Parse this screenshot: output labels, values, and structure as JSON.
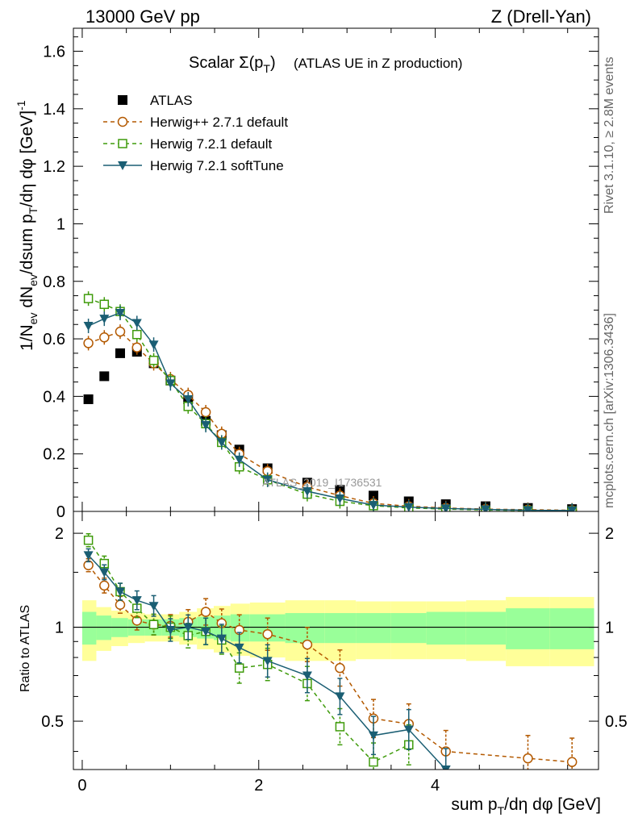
{
  "header": {
    "left": "13000 GeV pp",
    "right": "Z (Drell-Yan)"
  },
  "title": {
    "main": "Scalar Σ(p",
    "sub_T": "T",
    "close": ")",
    "suffix": "(ATLAS UE in Z production)"
  },
  "side_labels": {
    "rivet": "Rivet 3.1.10, ≥ 2.8M events",
    "mcplots": "mcplots.cern.ch [arXiv:1306.3436]"
  },
  "watermark": "ATLAS_2019_I1736531",
  "axes": {
    "ylabel_top": "1/N_ev dN_ev/dsum p_T/dη dφ [GeV]^-1",
    "ylabel_bottom": "Ratio to ATLAS",
    "xlabel": "sum p_T/dη dφ [GeV]",
    "top_yticks": [
      "0",
      "0.2",
      "0.4",
      "0.6",
      "0.8",
      "1",
      "1.2",
      "1.4",
      "1.6"
    ],
    "bottom_yticks": [
      "0.5",
      "1",
      "2"
    ],
    "xticks": [
      "0",
      "2",
      "4"
    ]
  },
  "colors": {
    "atlas": "#000000",
    "herwigpp": "#b35900",
    "herwig721": "#3f9b0b",
    "softtune": "#1a5e73",
    "band_inner": "#99ff99",
    "band_outer": "#ffff99"
  },
  "chart_data": [
    {
      "type": "scatter",
      "title": "Scalar Σ(pT) (ATLAS UE in Z production)",
      "xlabel": "sum pT/dη dφ [GeV]",
      "ylabel": "1/Nev dNev/dsum pT/dη dφ [GeV]^-1",
      "xlim": [
        -0.1,
        5.85
      ],
      "ylim": [
        0,
        1.68
      ],
      "legend_position": "top-left",
      "x": [
        0.07,
        0.25,
        0.43,
        0.62,
        0.81,
        1.0,
        1.2,
        1.4,
        1.58,
        1.78,
        2.1,
        2.55,
        2.92,
        3.3,
        3.7,
        4.12,
        4.57,
        5.05,
        5.55
      ],
      "series": [
        {
          "name": "ATLAS",
          "marker": "square-filled",
          "values": [
            0.39,
            0.47,
            0.55,
            0.555,
            0.515,
            0.455,
            0.39,
            0.315,
            0.265,
            0.215,
            0.15,
            0.1,
            0.075,
            0.055,
            0.035,
            0.025,
            0.018,
            0.012,
            0.008
          ]
        },
        {
          "name": "Herwig++ 2.7.1 default",
          "marker": "circle-open",
          "values": [
            0.585,
            0.605,
            0.625,
            0.57,
            0.515,
            0.46,
            0.405,
            0.345,
            0.27,
            0.2,
            0.14,
            0.085,
            0.055,
            0.028,
            0.018,
            0.012,
            0.008,
            0.006,
            0.004
          ]
        },
        {
          "name": "Herwig 7.2.1 default",
          "marker": "square-open",
          "values": [
            0.74,
            0.72,
            0.695,
            0.615,
            0.525,
            0.455,
            0.365,
            0.305,
            0.24,
            0.155,
            0.11,
            0.06,
            0.035,
            0.02,
            0.012,
            0.008,
            0.005,
            0.003,
            0.002
          ]
        },
        {
          "name": "Herwig 7.2.1 softTune",
          "marker": "triangle-down-filled",
          "values": [
            0.645,
            0.67,
            0.69,
            0.655,
            0.58,
            0.445,
            0.39,
            0.3,
            0.24,
            0.18,
            0.11,
            0.07,
            0.045,
            0.022,
            0.015,
            0.01,
            0.007,
            0.004,
            0.003
          ]
        }
      ]
    },
    {
      "type": "line",
      "ylabel": "Ratio to ATLAS",
      "xlabel": "sum pT/dη dφ [GeV]",
      "ylim": [
        0.35,
        2.35
      ],
      "yscale": "log",
      "x": [
        0.07,
        0.25,
        0.43,
        0.62,
        0.81,
        1.0,
        1.2,
        1.4,
        1.58,
        1.78,
        2.1,
        2.55,
        2.92,
        3.3,
        3.7,
        4.12,
        4.57,
        5.05,
        5.55
      ],
      "bin_edges": [
        0.0,
        0.16,
        0.33,
        0.52,
        0.71,
        0.9,
        1.1,
        1.3,
        1.49,
        1.68,
        1.9,
        2.3,
        2.75,
        3.1,
        3.5,
        3.9,
        4.35,
        4.8,
        5.3,
        5.8
      ],
      "band_inner": [
        0.12,
        0.09,
        0.07,
        0.06,
        0.06,
        0.06,
        0.07,
        0.08,
        0.09,
        0.1,
        0.1,
        0.11,
        0.11,
        0.11,
        0.11,
        0.12,
        0.12,
        0.15,
        0.15
      ],
      "band_outer": [
        0.22,
        0.16,
        0.13,
        0.11,
        0.1,
        0.1,
        0.12,
        0.15,
        0.17,
        0.19,
        0.2,
        0.22,
        0.22,
        0.21,
        0.21,
        0.21,
        0.22,
        0.25,
        0.25
      ],
      "series": [
        {
          "name": "Herwig++ 2.7.1 default",
          "values": [
            1.58,
            1.36,
            1.18,
            1.05,
            1.02,
            1.01,
            1.04,
            1.12,
            1.03,
            0.98,
            0.95,
            0.88,
            0.74,
            0.51,
            0.49,
            0.4,
            null,
            0.38,
            0.37
          ]
        },
        {
          "name": "Herwig 7.2.1 default",
          "values": [
            1.9,
            1.6,
            1.3,
            1.15,
            1.02,
            1.0,
            0.94,
            0.97,
            0.91,
            0.74,
            0.76,
            0.66,
            0.48,
            0.37,
            0.42,
            null,
            null,
            null,
            null
          ]
        },
        {
          "name": "Herwig 7.2.1 softTune",
          "values": [
            1.7,
            1.5,
            1.3,
            1.22,
            1.17,
            0.98,
            1.0,
            0.97,
            0.92,
            0.86,
            0.78,
            0.7,
            0.6,
            0.45,
            0.47,
            0.35,
            null,
            null,
            null
          ]
        }
      ]
    }
  ]
}
